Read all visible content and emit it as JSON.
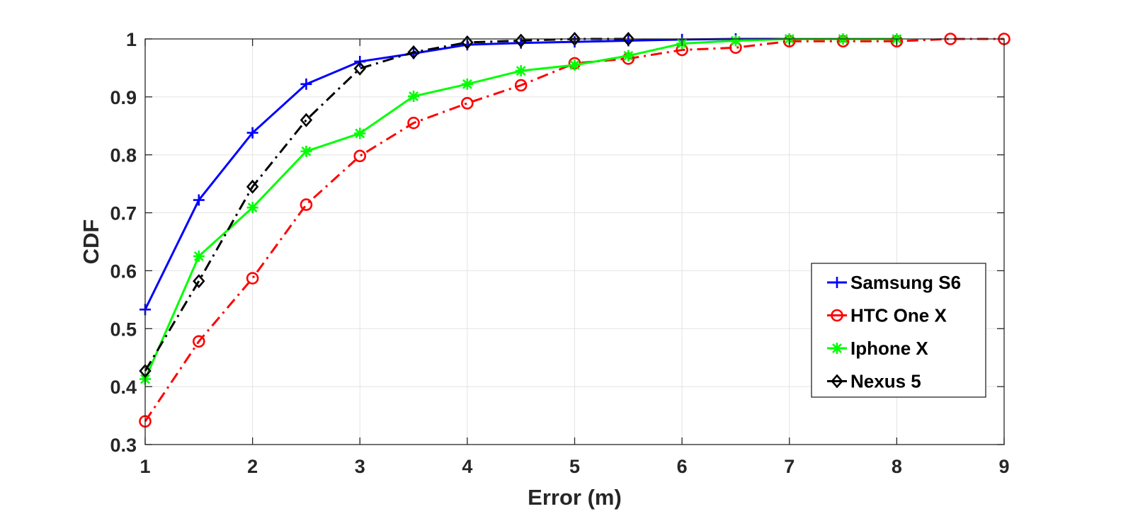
{
  "chart_data": {
    "type": "line",
    "xlabel": "Error (m)",
    "ylabel": "CDF",
    "xlim": [
      1,
      9
    ],
    "ylim": [
      0.3,
      1
    ],
    "xticks": [
      "1",
      "2",
      "3",
      "4",
      "5",
      "6",
      "7",
      "8",
      "9"
    ],
    "yticks": [
      "0.3",
      "0.4",
      "0.5",
      "0.6",
      "0.7",
      "0.8",
      "0.9",
      "1"
    ],
    "grid": true,
    "legend_position": "lower-right",
    "series": [
      {
        "name": "Samsung S6",
        "color": "#0000ff",
        "line_style": "solid",
        "marker": "plus",
        "x": [
          1,
          1.5,
          2,
          2.5,
          3,
          3.5,
          4,
          4.5,
          5,
          5.5,
          6,
          6.5,
          7
        ],
        "y": [
          0.533,
          0.722,
          0.838,
          0.922,
          0.961,
          0.975,
          0.99,
          0.993,
          0.995,
          0.997,
          0.999,
          1.0,
          1.0
        ]
      },
      {
        "name": "HTC One X",
        "color": "#ff0000",
        "line_style": "dashdot",
        "marker": "circle",
        "x": [
          1,
          1.5,
          2,
          2.5,
          3,
          3.5,
          4,
          4.5,
          5,
          5.5,
          6,
          6.5,
          7,
          7.5,
          8,
          8.5,
          9
        ],
        "y": [
          0.34,
          0.478,
          0.587,
          0.714,
          0.798,
          0.855,
          0.889,
          0.92,
          0.958,
          0.966,
          0.981,
          0.985,
          0.996,
          0.996,
          0.996,
          1.0,
          1.0
        ]
      },
      {
        "name": "Iphone X",
        "color": "#00ff00",
        "line_style": "solid",
        "marker": "asterisk",
        "x": [
          1,
          1.5,
          2,
          2.5,
          3,
          3.5,
          4,
          4.5,
          5,
          5.5,
          6,
          6.5,
          7,
          7.5,
          8
        ],
        "y": [
          0.413,
          0.625,
          0.709,
          0.806,
          0.837,
          0.901,
          0.922,
          0.945,
          0.955,
          0.971,
          0.992,
          0.997,
          1.0,
          1.0,
          1.0
        ]
      },
      {
        "name": "Nexus 5",
        "color": "#000000",
        "line_style": "dashdot",
        "marker": "diamond",
        "x": [
          1,
          1.5,
          2,
          2.5,
          3,
          3.5,
          4,
          4.5,
          5,
          5.5
        ],
        "y": [
          0.427,
          0.582,
          0.745,
          0.86,
          0.949,
          0.977,
          0.994,
          0.997,
          1.0,
          1.0
        ]
      }
    ]
  }
}
